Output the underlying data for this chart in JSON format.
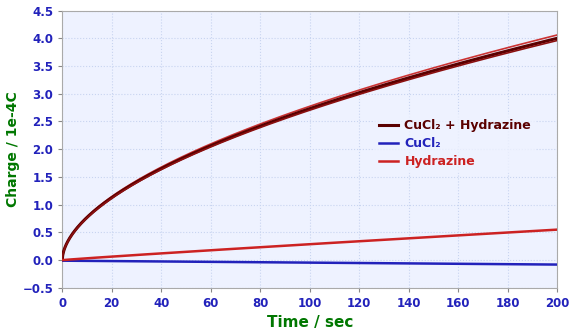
{
  "title": "",
  "xlabel": "Time / sec",
  "ylabel": "Charge / 1e-4C",
  "xlim": [
    0,
    200
  ],
  "ylim": [
    -0.5,
    4.5
  ],
  "xticks": [
    0,
    20,
    40,
    60,
    80,
    100,
    120,
    140,
    160,
    180,
    200
  ],
  "yticks": [
    -0.5,
    0.0,
    0.5,
    1.0,
    1.5,
    2.0,
    2.5,
    3.0,
    3.5,
    4.0,
    4.5
  ],
  "xlabel_color": "#007700",
  "ylabel_color": "#007700",
  "tick_color": "#2222bb",
  "background_color": "#ffffff",
  "plot_bg_color": "#eef2ff",
  "grid_color": "#c8d4f0",
  "legend_labels": [
    "CuCl₂ + Hydrazine",
    "CuCl₂",
    "Hydrazine"
  ],
  "cucl2_hydrazine_dark": "#5a0000",
  "cucl2_hydrazine_mid": "#8b1010",
  "cucl2_hydrazine_light": "#cc3333",
  "cucl2_color": "#2222bb",
  "hydrazine_color": "#cc2222",
  "t_max": 200,
  "n_points": 1000
}
